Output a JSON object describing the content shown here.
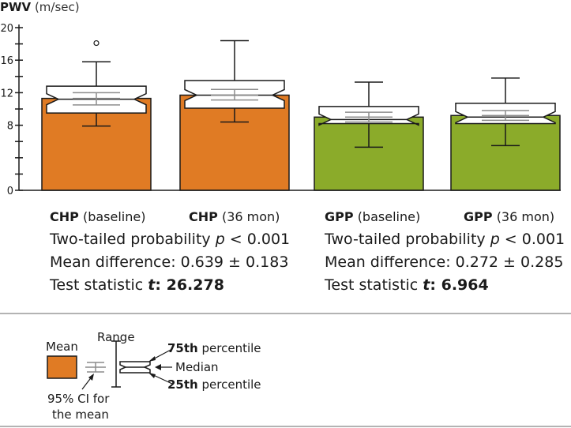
{
  "y_axis": {
    "label": "PWV",
    "unit": "(m/sec)"
  },
  "chart_data": {
    "type": "box",
    "ylabel": "PWV (m/sec)",
    "ylim": [
      0,
      20
    ],
    "yticks": [
      {
        "value": 0,
        "label": "0"
      },
      {
        "value": 2,
        "label": ""
      },
      {
        "value": 4,
        "label": ""
      },
      {
        "value": 6,
        "label": ""
      },
      {
        "value": 8,
        "label": "8"
      },
      {
        "value": 10,
        "label": ""
      },
      {
        "value": 12,
        "label": "12"
      },
      {
        "value": 14,
        "label": ""
      },
      {
        "value": 16,
        "label": "16"
      },
      {
        "value": 18,
        "label": ""
      },
      {
        "value": 20,
        "label": "20"
      }
    ],
    "groups": [
      {
        "cond": "CHP",
        "when": "(baseline)",
        "color": "#e07b24",
        "mean": 11.3,
        "ci": [
          10.5,
          12.0
        ],
        "range": [
          7.9,
          15.8
        ],
        "q1": 9.5,
        "median": 11.2,
        "q3": 12.8,
        "outliers": [
          18.1
        ]
      },
      {
        "cond": "CHP",
        "when": "(36 mon)",
        "color": "#e07b24",
        "mean": 11.7,
        "ci": [
          11.1,
          12.4
        ],
        "range": [
          8.4,
          18.4
        ],
        "q1": 10.1,
        "median": 11.7,
        "q3": 13.5,
        "outliers": []
      },
      {
        "cond": "GPP",
        "when": "(baseline)",
        "color": "#8bab2a",
        "mean": 9.0,
        "ci": [
          8.4,
          9.6
        ],
        "range": [
          5.3,
          13.3
        ],
        "q1": 8.2,
        "median": 8.7,
        "q3": 10.3,
        "outliers": []
      },
      {
        "cond": "GPP",
        "when": "(36 mon)",
        "color": "#8bab2a",
        "mean": 9.2,
        "ci": [
          8.6,
          9.8
        ],
        "range": [
          5.5,
          13.8
        ],
        "q1": 8.2,
        "median": 9.0,
        "q3": 10.7,
        "outliers": []
      }
    ]
  },
  "stats": [
    {
      "prob_text": "Two-tailed probability ",
      "p": "p",
      "prob_rest": " < 0.001",
      "mean_diff": "Mean difference: 0.639 ± 0.183",
      "test_label": "Test statistic ",
      "t": "t",
      "t_value": ": 26.278"
    },
    {
      "prob_text": "Two-tailed probability ",
      "p": "p",
      "prob_rest": " < 0.001",
      "mean_diff": "Mean difference: 0.272 ± 0.285",
      "test_label": "Test statistic ",
      "t": "t",
      "t_value": ": 6.964"
    }
  ],
  "legend": {
    "mean": "Mean",
    "range": "Range",
    "p75_bold": "75th",
    "p75_rest": " percentile",
    "median": "Median",
    "p25_bold": "25th",
    "p25_rest": " percentile",
    "ci_line1": "95% CI for",
    "ci_line2": "the mean",
    "mean_color": "#e07b24"
  }
}
